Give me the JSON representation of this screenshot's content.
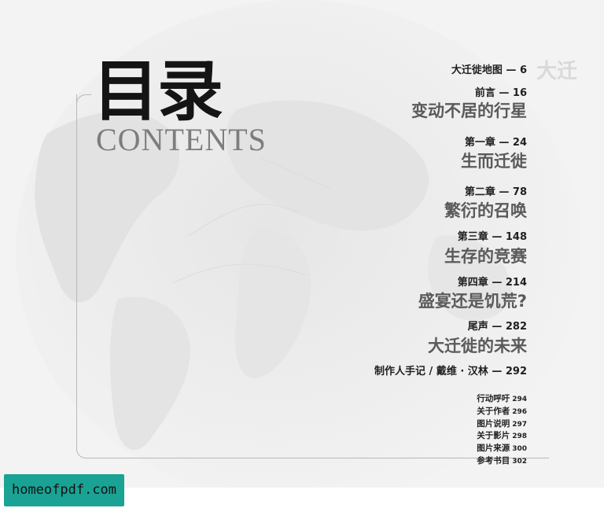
{
  "heading": {
    "title_cn": "目录",
    "title_en": "CONTENTS"
  },
  "toc": {
    "entries": [
      {
        "head": "大迁徙地图 — 6",
        "title": ""
      },
      {
        "head": "前言 — 16",
        "title": "变动不居的行星"
      },
      {
        "head": "第一章 — 24",
        "title": "生而迁徙"
      },
      {
        "head": "第二章 — 78",
        "title": "繁衍的召唤"
      },
      {
        "head": "第三章 — 148",
        "title": "生存的竞赛"
      },
      {
        "head": "第四章 — 214",
        "title": "盛宴还是饥荒?"
      },
      {
        "head": "尾声 — 282",
        "title": "大迁徙的未来"
      },
      {
        "head": "制作人手记 / 戴维 · 汉林 — 292",
        "title": ""
      }
    ],
    "appendix": [
      {
        "label": "行动呼吁",
        "page": "294"
      },
      {
        "label": "关于作者",
        "page": "296"
      },
      {
        "label": "图片说明",
        "page": "297"
      },
      {
        "label": "关于影片",
        "page": "298"
      },
      {
        "label": "图片来源",
        "page": "300"
      },
      {
        "label": "参考书目",
        "page": "302"
      }
    ]
  },
  "watermark": {
    "text": "homeofpdf.com",
    "color": "#1aa394"
  }
}
